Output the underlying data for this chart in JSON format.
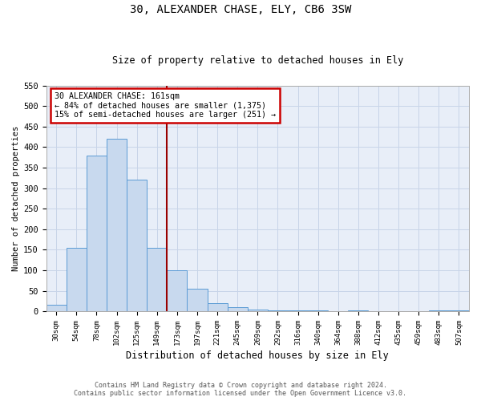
{
  "title1": "30, ALEXANDER CHASE, ELY, CB6 3SW",
  "title2": "Size of property relative to detached houses in Ely",
  "xlabel": "Distribution of detached houses by size in Ely",
  "ylabel": "Number of detached properties",
  "categories": [
    "30sqm",
    "54sqm",
    "78sqm",
    "102sqm",
    "125sqm",
    "149sqm",
    "173sqm",
    "197sqm",
    "221sqm",
    "245sqm",
    "269sqm",
    "292sqm",
    "316sqm",
    "340sqm",
    "364sqm",
    "388sqm",
    "412sqm",
    "435sqm",
    "459sqm",
    "483sqm",
    "507sqm"
  ],
  "values": [
    15,
    155,
    380,
    420,
    320,
    155,
    100,
    55,
    20,
    10,
    5,
    3,
    3,
    3,
    0,
    3,
    0,
    0,
    0,
    3,
    3
  ],
  "bar_color": "#c8d9ee",
  "bar_edge_color": "#5b9bd5",
  "grid_color": "#c8d4e8",
  "bg_color": "#e8eef8",
  "marker_label": "30 ALEXANDER CHASE: 161sqm",
  "marker_line1": "← 84% of detached houses are smaller (1,375)",
  "marker_line2": "15% of semi-detached houses are larger (251) →",
  "annotation_box_color": "#ffffff",
  "annotation_box_edge": "#cc0000",
  "marker_line_color": "#990000",
  "ylim": [
    0,
    550
  ],
  "yticks": [
    0,
    50,
    100,
    150,
    200,
    250,
    300,
    350,
    400,
    450,
    500,
    550
  ],
  "footnote1": "Contains HM Land Registry data © Crown copyright and database right 2024.",
  "footnote2": "Contains public sector information licensed under the Open Government Licence v3.0."
}
